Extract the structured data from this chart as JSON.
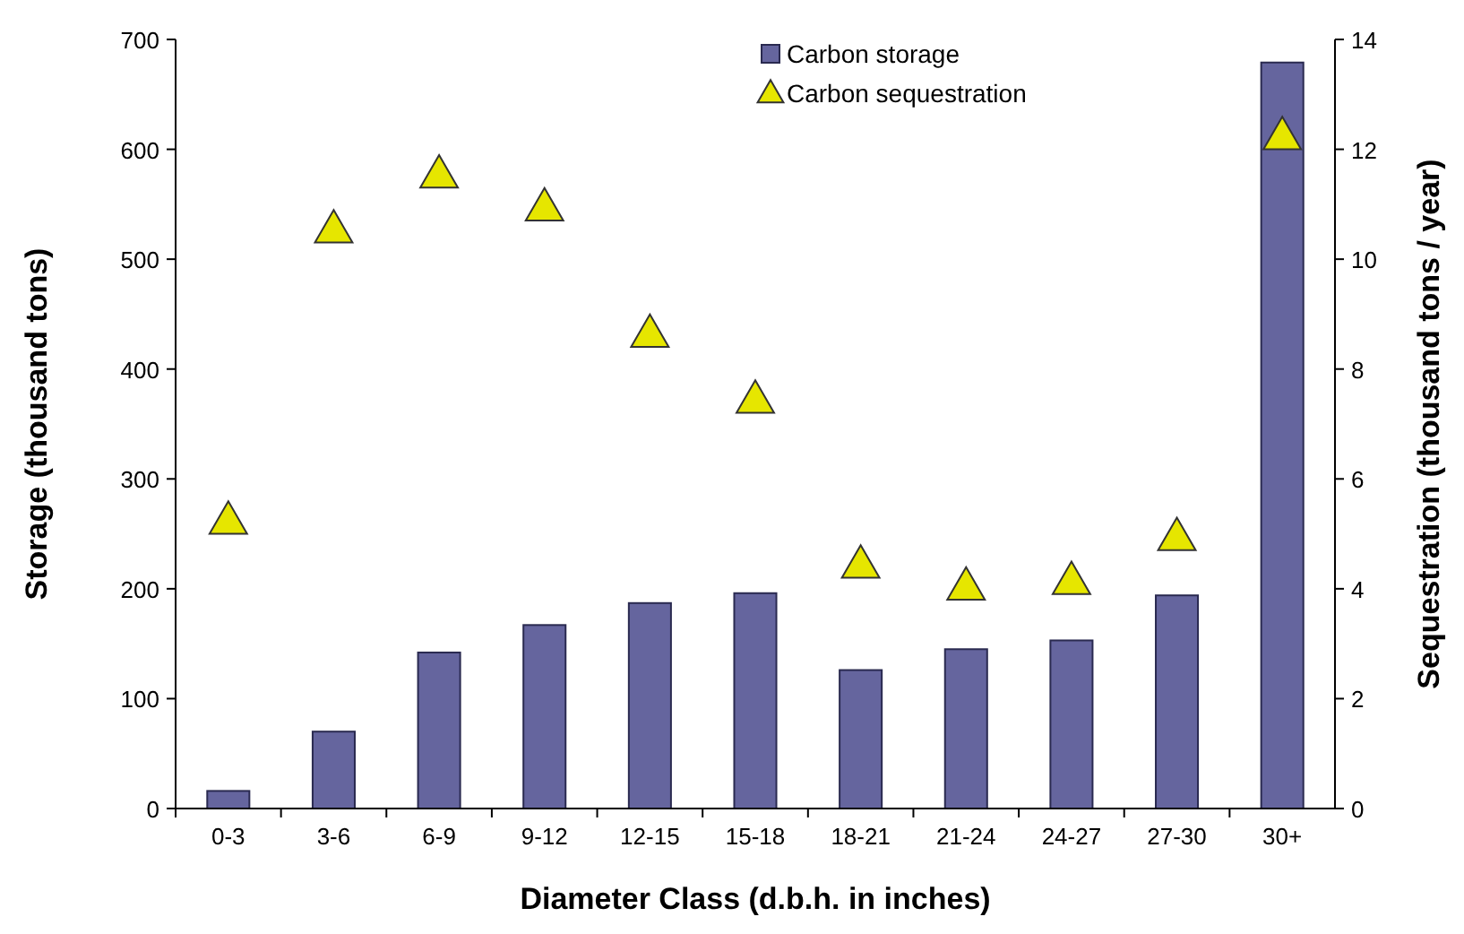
{
  "chart_data": {
    "type": "bar",
    "xlabel": "Diameter Class (d.b.h. in inches)",
    "ylabel": "Storage (thousand tons)",
    "y2label": "Sequestration (thousand tons / year)",
    "categories": [
      "0-3",
      "3-6",
      "6-9",
      "9-12",
      "12-15",
      "15-18",
      "18-21",
      "21-24",
      "24-27",
      "27-30",
      "30+"
    ],
    "series": [
      {
        "name": "Carbon storage",
        "color": "#65659e",
        "values": [
          16,
          70,
          142,
          167,
          187,
          196,
          126,
          145,
          153,
          194,
          679
        ]
      },
      {
        "name": "Carbon sequestration",
        "type": "scatter",
        "axis": "y2",
        "color": "#e6e600",
        "marker": "triangle",
        "values": [
          5.2,
          10.5,
          11.5,
          10.9,
          8.6,
          7.4,
          4.4,
          4.0,
          4.1,
          4.9,
          12.2
        ]
      }
    ],
    "ylim": [
      0,
      700
    ],
    "yticks": [
      0,
      100,
      200,
      300,
      400,
      500,
      600,
      700
    ],
    "y2lim": [
      0,
      14
    ],
    "y2ticks": [
      0,
      2,
      4,
      6,
      8,
      10,
      12,
      14
    ],
    "legend": "top right",
    "grid": false
  }
}
